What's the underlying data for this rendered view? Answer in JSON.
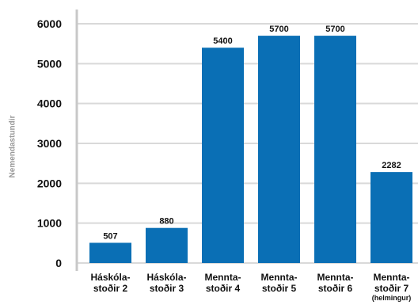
{
  "chart_data": {
    "type": "bar",
    "ylabel": "Nemendastundir",
    "xlabel": "",
    "ylim": [
      0,
      6000
    ],
    "yticks": [
      0,
      1000,
      2000,
      3000,
      4000,
      5000,
      6000
    ],
    "grid": true,
    "categories": [
      [
        "Háskóla-",
        "stoðir 2"
      ],
      [
        "Háskóla-",
        "stoðir 3"
      ],
      [
        "Mennta-",
        "stoðir 4"
      ],
      [
        "Mennta-",
        "stoðir 5"
      ],
      [
        "Mennta-",
        "stoðir 6"
      ],
      [
        "Mennta-",
        "stoðir 7",
        "(helmingur)"
      ]
    ],
    "values": [
      507,
      880,
      5400,
      5700,
      5700,
      2282
    ],
    "data_labels": [
      "507",
      "880",
      "5400",
      "5700",
      "5700",
      "2282"
    ],
    "colors": {
      "bar": "#0a6fb5",
      "grid": "#d9d9d9",
      "axis": "#c8c8c8",
      "text": "#111111"
    }
  }
}
